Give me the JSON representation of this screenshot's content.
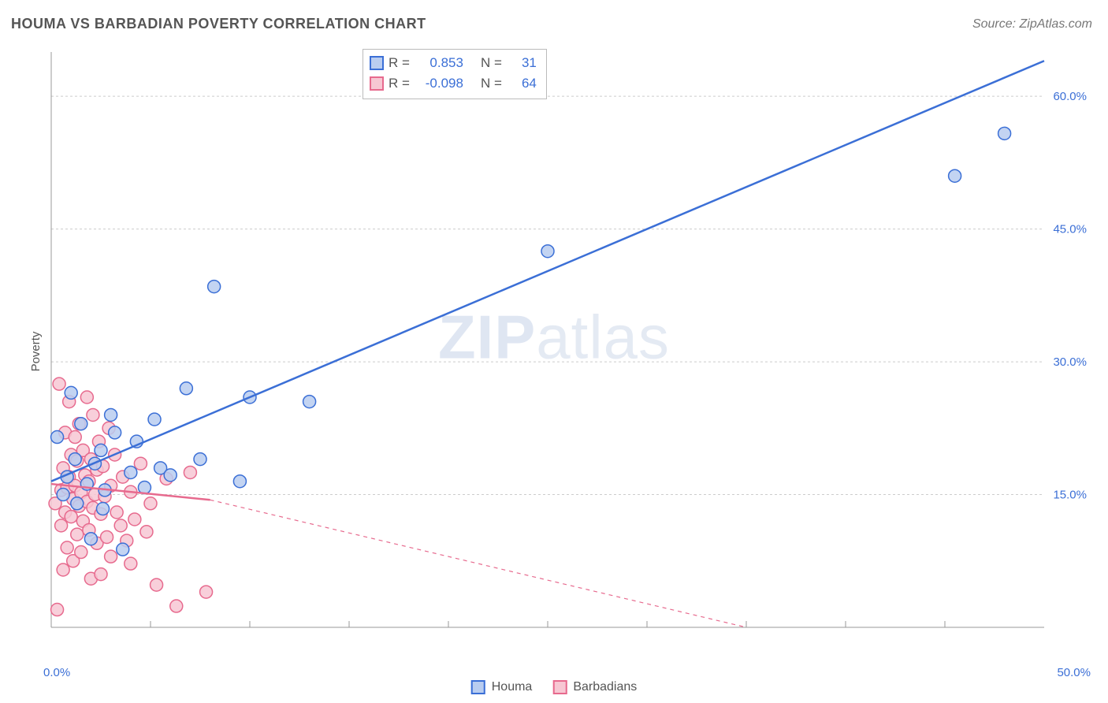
{
  "title": "HOUMA VS BARBADIAN POVERTY CORRELATION CHART",
  "source": "Source: ZipAtlas.com",
  "ylabel": "Poverty",
  "watermark_bold": "ZIP",
  "watermark_rest": "atlas",
  "legend": {
    "s1": "Houma",
    "s2": "Barbadians"
  },
  "stats": {
    "r_label": "R =",
    "n_label": "N =",
    "s1": {
      "r": "0.853",
      "n": "31"
    },
    "s2": {
      "r": "-0.098",
      "n": "64"
    }
  },
  "axes": {
    "xlim": [
      0,
      50
    ],
    "ylim": [
      0,
      65
    ],
    "y_ticks": [
      15.0,
      30.0,
      45.0,
      60.0
    ],
    "y_tick_fmt": [
      "15.0%",
      "30.0%",
      "45.0%",
      "60.0%"
    ],
    "x_left": "0.0%",
    "x_right": "50.0%",
    "x_minor": [
      5,
      10,
      15,
      20,
      25,
      30,
      35,
      40,
      45
    ]
  },
  "style": {
    "bg": "#ffffff",
    "grid_color": "#cccccc",
    "axis_color": "#999999",
    "tick_text_color": "#3b6fd6",
    "s1_fill": "#b9cdf0",
    "s1_stroke": "#3b6fd6",
    "s2_fill": "#f7c7d3",
    "s2_stroke": "#e76a8e",
    "marker_r": 8,
    "marker_opacity": 0.85,
    "title_fontsize": 18,
    "label_fontsize": 15,
    "line_width_s1": 2.5,
    "line_width_s2": 2.5
  },
  "lines": {
    "s1": {
      "x1": 0,
      "y1": 16.5,
      "x2": 50,
      "y2": 64,
      "dashed": false
    },
    "s2_solid": {
      "x1": 0,
      "y1": 16.2,
      "x2": 8,
      "y2": 14.4
    },
    "s2_dash": {
      "x1": 8,
      "y1": 14.4,
      "x2": 35,
      "y2": 0
    }
  },
  "series": {
    "houma": [
      [
        0.3,
        21.5
      ],
      [
        0.6,
        15.0
      ],
      [
        0.8,
        17.0
      ],
      [
        1.0,
        26.5
      ],
      [
        1.2,
        19.0
      ],
      [
        1.3,
        14.0
      ],
      [
        1.5,
        23.0
      ],
      [
        1.8,
        16.2
      ],
      [
        2.0,
        10.0
      ],
      [
        2.2,
        18.5
      ],
      [
        2.5,
        20.0
      ],
      [
        2.7,
        15.5
      ],
      [
        3.0,
        24.0
      ],
      [
        3.2,
        22.0
      ],
      [
        3.6,
        8.8
      ],
      [
        4.0,
        17.5
      ],
      [
        4.3,
        21.0
      ],
      [
        4.7,
        15.8
      ],
      [
        5.2,
        23.5
      ],
      [
        5.5,
        18.0
      ],
      [
        6.0,
        17.2
      ],
      [
        6.8,
        27.0
      ],
      [
        7.5,
        19.0
      ],
      [
        8.2,
        38.5
      ],
      [
        9.5,
        16.5
      ],
      [
        10.0,
        26.0
      ],
      [
        13.0,
        25.5
      ],
      [
        25.0,
        42.5
      ],
      [
        45.5,
        51.0
      ],
      [
        48.0,
        55.8
      ],
      [
        2.6,
        13.4
      ]
    ],
    "barbadians": [
      [
        0.2,
        14.0
      ],
      [
        0.3,
        2.0
      ],
      [
        0.4,
        27.5
      ],
      [
        0.5,
        11.5
      ],
      [
        0.5,
        15.5
      ],
      [
        0.6,
        18.0
      ],
      [
        0.6,
        6.5
      ],
      [
        0.7,
        13.0
      ],
      [
        0.7,
        22.0
      ],
      [
        0.8,
        15.8
      ],
      [
        0.8,
        9.0
      ],
      [
        0.9,
        17.0
      ],
      [
        0.9,
        25.5
      ],
      [
        1.0,
        12.5
      ],
      [
        1.0,
        19.5
      ],
      [
        1.1,
        7.5
      ],
      [
        1.1,
        14.5
      ],
      [
        1.2,
        21.5
      ],
      [
        1.2,
        16.0
      ],
      [
        1.3,
        10.5
      ],
      [
        1.3,
        18.8
      ],
      [
        1.4,
        13.7
      ],
      [
        1.4,
        23.0
      ],
      [
        1.5,
        15.2
      ],
      [
        1.5,
        8.5
      ],
      [
        1.6,
        20.0
      ],
      [
        1.6,
        12.0
      ],
      [
        1.7,
        17.2
      ],
      [
        1.8,
        14.2
      ],
      [
        1.8,
        26.0
      ],
      [
        1.9,
        11.0
      ],
      [
        1.9,
        16.5
      ],
      [
        2.0,
        5.5
      ],
      [
        2.0,
        19.0
      ],
      [
        2.1,
        13.5
      ],
      [
        2.1,
        24.0
      ],
      [
        2.2,
        15.0
      ],
      [
        2.3,
        9.5
      ],
      [
        2.3,
        17.8
      ],
      [
        2.4,
        21.0
      ],
      [
        2.5,
        12.8
      ],
      [
        2.5,
        6.0
      ],
      [
        2.6,
        18.2
      ],
      [
        2.7,
        14.8
      ],
      [
        2.8,
        10.2
      ],
      [
        2.9,
        22.5
      ],
      [
        3.0,
        8.0
      ],
      [
        3.0,
        16.0
      ],
      [
        3.2,
        19.5
      ],
      [
        3.3,
        13.0
      ],
      [
        3.5,
        11.5
      ],
      [
        3.6,
        17.0
      ],
      [
        3.8,
        9.8
      ],
      [
        4.0,
        15.3
      ],
      [
        4.0,
        7.2
      ],
      [
        4.2,
        12.2
      ],
      [
        4.5,
        18.5
      ],
      [
        4.8,
        10.8
      ],
      [
        5.0,
        14.0
      ],
      [
        5.3,
        4.8
      ],
      [
        5.8,
        16.8
      ],
      [
        6.3,
        2.4
      ],
      [
        7.0,
        17.5
      ],
      [
        7.8,
        4.0
      ]
    ]
  }
}
